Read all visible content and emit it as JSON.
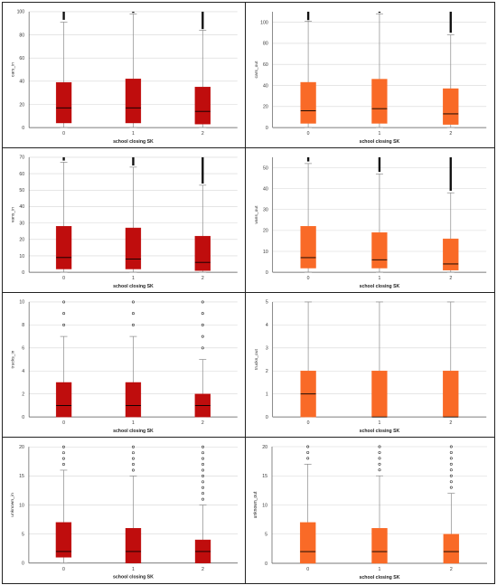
{
  "colors": {
    "in": "#bf0d0d",
    "out": "#f96a27",
    "whisker": "#8a8a8a",
    "grid": "#d6d6d6",
    "median": "#000000"
  },
  "chart_data": [
    {
      "type": "box",
      "panel": "cars-in",
      "color": "in",
      "xlabel": "school closing SK",
      "ylabel": "cars_in",
      "categories": [
        "0",
        "1",
        "2"
      ],
      "ylim": [
        0,
        100
      ],
      "yticks": [
        0,
        20,
        40,
        60,
        80,
        100
      ],
      "grid": true,
      "boxes": [
        {
          "whisker_low": 0,
          "q1": 4,
          "median": 17,
          "q3": 39,
          "whisker_high": 91,
          "outliers_from": 93,
          "outliers_to": 100,
          "dense": true
        },
        {
          "whisker_low": 0,
          "q1": 4,
          "median": 17,
          "q3": 42,
          "whisker_high": 98,
          "outliers_from": 99,
          "outliers_to": 100,
          "dense": true
        },
        {
          "whisker_low": 0,
          "q1": 3,
          "median": 14,
          "q3": 35,
          "whisker_high": 84,
          "outliers_from": 85,
          "outliers_to": 100,
          "dense": true
        }
      ]
    },
    {
      "type": "box",
      "panel": "cars-out",
      "color": "out",
      "xlabel": "school closing SK",
      "ylabel": "cars_out",
      "categories": [
        "0",
        "1",
        "2"
      ],
      "ylim": [
        0,
        110
      ],
      "yticks": [
        0,
        20,
        40,
        60,
        80,
        100
      ],
      "grid": true,
      "boxes": [
        {
          "whisker_low": 0,
          "q1": 4,
          "median": 16,
          "q3": 43,
          "whisker_high": 101,
          "outliers_from": 102,
          "outliers_to": 110,
          "dense": true
        },
        {
          "whisker_low": 0,
          "q1": 4,
          "median": 18,
          "q3": 46,
          "whisker_high": 108,
          "outliers_from": 109,
          "outliers_to": 110,
          "dense": true
        },
        {
          "whisker_low": 0,
          "q1": 3,
          "median": 13,
          "q3": 37,
          "whisker_high": 88,
          "outliers_from": 90,
          "outliers_to": 110,
          "dense": true
        }
      ]
    },
    {
      "type": "box",
      "panel": "vans-in",
      "color": "in",
      "xlabel": "school closing SK",
      "ylabel": "vans_in",
      "categories": [
        "0",
        "1",
        "2"
      ],
      "ylim": [
        0,
        70
      ],
      "yticks": [
        0,
        10,
        20,
        30,
        40,
        50,
        60,
        70
      ],
      "grid": true,
      "boxes": [
        {
          "whisker_low": 0,
          "q1": 2,
          "median": 9,
          "q3": 28,
          "whisker_high": 67,
          "outliers_from": 68,
          "outliers_to": 70,
          "dense": true
        },
        {
          "whisker_low": 0,
          "q1": 2,
          "median": 8,
          "q3": 27,
          "whisker_high": 64,
          "outliers_from": 65,
          "outliers_to": 70,
          "dense": true
        },
        {
          "whisker_low": 0,
          "q1": 1,
          "median": 6,
          "q3": 22,
          "whisker_high": 53,
          "outliers_from": 54,
          "outliers_to": 70,
          "dense": true
        }
      ]
    },
    {
      "type": "box",
      "panel": "vans-out",
      "color": "out",
      "xlabel": "school closing SK",
      "ylabel": "vans_out",
      "categories": [
        "0",
        "1",
        "2"
      ],
      "ylim": [
        0,
        55
      ],
      "yticks": [
        0,
        10,
        20,
        30,
        40,
        50
      ],
      "grid": true,
      "boxes": [
        {
          "whisker_low": 0,
          "q1": 2,
          "median": 7,
          "q3": 22,
          "whisker_high": 52,
          "outliers_from": 53,
          "outliers_to": 55,
          "dense": true
        },
        {
          "whisker_low": 0,
          "q1": 2,
          "median": 6,
          "q3": 19,
          "whisker_high": 47,
          "outliers_from": 48,
          "outliers_to": 55,
          "dense": true
        },
        {
          "whisker_low": 0,
          "q1": 1,
          "median": 4,
          "q3": 16,
          "whisker_high": 38,
          "outliers_from": 39,
          "outliers_to": 55,
          "dense": true
        }
      ]
    },
    {
      "type": "box",
      "panel": "trucks-in",
      "color": "in",
      "xlabel": "school closing SK",
      "ylabel": "trucks_in",
      "categories": [
        "0",
        "1",
        "2"
      ],
      "ylim": [
        0,
        10
      ],
      "yticks": [
        0,
        2,
        4,
        6,
        8,
        10
      ],
      "grid": true,
      "boxes": [
        {
          "whisker_low": 0,
          "q1": 0,
          "median": 1,
          "q3": 3,
          "whisker_high": 7,
          "outliers": [
            8,
            9,
            10
          ]
        },
        {
          "whisker_low": 0,
          "q1": 0,
          "median": 1,
          "q3": 3,
          "whisker_high": 7,
          "outliers": [
            8,
            9,
            10
          ]
        },
        {
          "whisker_low": 0,
          "q1": 0,
          "median": 1,
          "q3": 2,
          "whisker_high": 5,
          "outliers": [
            6,
            7,
            8,
            9,
            10
          ]
        }
      ]
    },
    {
      "type": "box",
      "panel": "trucks-out",
      "color": "out",
      "xlabel": "school closing SK",
      "ylabel": "trucks_out",
      "categories": [
        "0",
        "1",
        "2"
      ],
      "ylim": [
        0,
        5
      ],
      "yticks": [
        0,
        1,
        2,
        3,
        4,
        5
      ],
      "grid": true,
      "boxes": [
        {
          "whisker_low": 0,
          "q1": 0,
          "median": 1,
          "q3": 2,
          "whisker_high": 5,
          "outliers": []
        },
        {
          "whisker_low": 0,
          "q1": 0,
          "median": 0,
          "q3": 2,
          "whisker_high": 5,
          "outliers": []
        },
        {
          "whisker_low": 0,
          "q1": 0,
          "median": 0,
          "q3": 2,
          "whisker_high": 5,
          "outliers": []
        }
      ]
    },
    {
      "type": "box",
      "panel": "unknown-in",
      "color": "in",
      "xlabel": "school closing SK",
      "ylabel": "unknown_in",
      "categories": [
        "0",
        "1",
        "2"
      ],
      "ylim": [
        0,
        20
      ],
      "yticks": [
        0,
        5,
        10,
        15,
        20
      ],
      "grid": true,
      "boxes": [
        {
          "whisker_low": 0,
          "q1": 1,
          "median": 2,
          "q3": 7,
          "whisker_high": 16,
          "outliers": [
            17,
            18,
            19,
            20
          ]
        },
        {
          "whisker_low": 0,
          "q1": 0,
          "median": 2,
          "q3": 6,
          "whisker_high": 15,
          "outliers": [
            16,
            17,
            18,
            19,
            20
          ]
        },
        {
          "whisker_low": 0,
          "q1": 0,
          "median": 2,
          "q3": 4,
          "whisker_high": 10,
          "outliers": [
            11,
            12,
            13,
            14,
            15,
            16,
            17,
            18,
            19,
            20
          ]
        }
      ]
    },
    {
      "type": "box",
      "panel": "unknown-out",
      "color": "out",
      "xlabel": "school closing SK",
      "ylabel": "unknown_out",
      "categories": [
        "0",
        "1",
        "2"
      ],
      "ylim": [
        0,
        20
      ],
      "yticks": [
        0,
        5,
        10,
        15,
        20
      ],
      "grid": true,
      "boxes": [
        {
          "whisker_low": 0,
          "q1": 0,
          "median": 2,
          "q3": 7,
          "whisker_high": 17,
          "outliers": [
            18,
            19,
            20
          ]
        },
        {
          "whisker_low": 0,
          "q1": 0,
          "median": 2,
          "q3": 6,
          "whisker_high": 15,
          "outliers": [
            16,
            17,
            18,
            19,
            20
          ]
        },
        {
          "whisker_low": 0,
          "q1": 0,
          "median": 2,
          "q3": 5,
          "whisker_high": 12,
          "outliers": [
            13,
            14,
            15,
            16,
            17,
            18,
            19,
            20
          ]
        }
      ]
    }
  ]
}
